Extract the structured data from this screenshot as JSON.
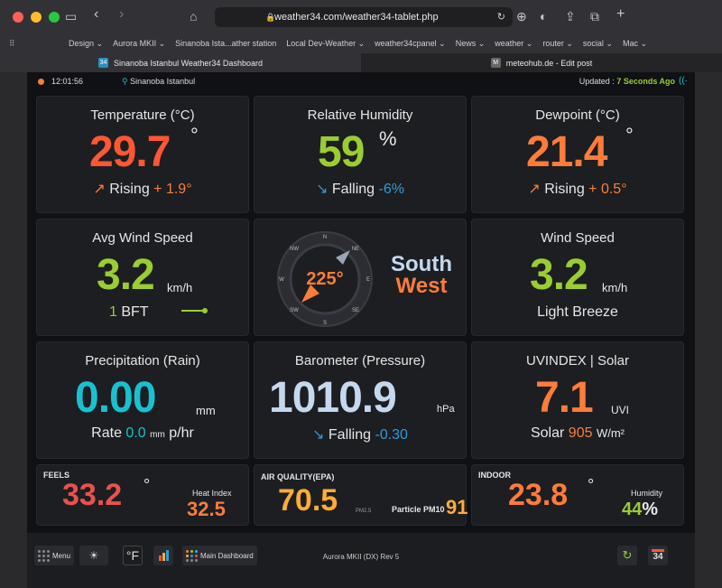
{
  "browser": {
    "url": "weather34.com/weather34-tablet.php",
    "bookmarks": [
      "Design ⌄",
      "Aurora MKII ⌄",
      "Sinanoba Ista...ather station",
      "Local Dev-Weather ⌄",
      "weather34cpanel ⌄",
      "News ⌄",
      "weather ⌄",
      "router ⌄",
      " social ⌄",
      " Mac ⌄"
    ],
    "tabs": [
      {
        "title": "Sinanoba Istanbul Weather34 Dashboard",
        "icon": "34"
      },
      {
        "title": "meteohub.de - Edit post",
        "icon": "M"
      }
    ]
  },
  "topbar": {
    "time": "12:01:56",
    "location": "Sinanoba Istanbul",
    "updated_label": "Updated :",
    "updated_value": "7 Seconds Ago"
  },
  "temperature": {
    "title": "Temperature (°C)",
    "value": "29.7",
    "unit": "°",
    "trend": "Rising",
    "delta": "+ 1.9°"
  },
  "humidity": {
    "title": "Relative Humidity",
    "value": "59",
    "unit": "%",
    "trend": "Falling",
    "delta": "-6%"
  },
  "dewpoint": {
    "title": "Dewpoint (°C)",
    "value": "21.4",
    "unit": "°",
    "trend": "Rising",
    "delta": "+ 0.5°"
  },
  "avg_wind": {
    "title": "Avg Wind Speed",
    "value": "3.2",
    "unit": "km/h",
    "bft_value": "1",
    "bft_label": "BFT"
  },
  "compass": {
    "degrees": "225°",
    "dir_line1": "South",
    "dir_line2": "West",
    "labels": [
      "NW",
      "N",
      "NE",
      "W",
      "E",
      "SW",
      "S",
      "SE"
    ]
  },
  "wind_speed": {
    "title": "Wind Speed",
    "value": "3.2",
    "unit": "km/h",
    "desc": "Light Breeze"
  },
  "rain": {
    "title": "Precipitation (Rain)",
    "value": "0.00",
    "unit": "mm",
    "rate_label": "Rate",
    "rate_value": "0.0",
    "rate_unit1": "mm",
    "rate_unit2": "p/hr"
  },
  "baro": {
    "title": "Barometer (Pressure)",
    "value": "1010.9",
    "unit": "hPa",
    "trend": "Falling",
    "delta": "-0.30"
  },
  "uv": {
    "title": "UVINDEX | Solar",
    "value": "7.1",
    "unit": "UVI",
    "solar_label": "Solar",
    "solar_value": "905",
    "solar_unit": "W/m²"
  },
  "feels": {
    "label": "FEELS",
    "value": "33.2",
    "unit": "°",
    "hi_label": "Heat Index",
    "hi_value": "32.5"
  },
  "aq": {
    "label": "AIR QUALITY(EPA)",
    "value": "70.5",
    "unit": "PM2.5",
    "pm10_label": "Particle PM10",
    "pm10_value": "91"
  },
  "indoor": {
    "label": "INDOOR",
    "value": "23.8",
    "unit": "°",
    "hum_label": "Humidity",
    "hum_value": "44",
    "hum_unit": "%"
  },
  "footer": {
    "menu": "Menu",
    "units": "°F",
    "main": "Main Dashboard",
    "version": "Aurora MKII (DX) Rev 5",
    "badge": "34"
  }
}
